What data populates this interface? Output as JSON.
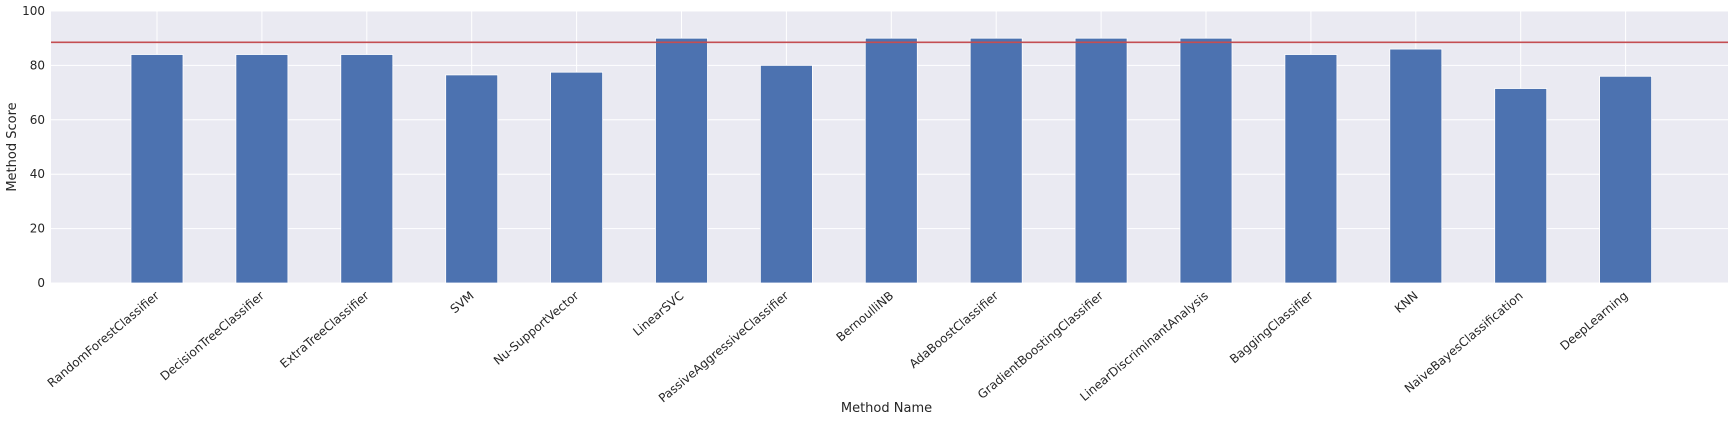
{
  "chart_data": {
    "type": "bar",
    "title": "",
    "xlabel": "Method Name",
    "ylabel": "Method Score",
    "ylim": [
      0,
      100
    ],
    "yticks": [
      0,
      20,
      40,
      60,
      80,
      100
    ],
    "grid": true,
    "categories": [
      "RandomForestClassifier",
      "DecisionTreeClassifier",
      "ExtraTreeClassifier",
      "SVM",
      "Nu-SupportVector",
      "LinearSVC",
      "PassiveAggressiveClassifier",
      "BernoulliNB",
      "AdaBoostClassifier",
      "GradientBoostingClassifier",
      "LinearDiscriminantAnalysis",
      "BaggingClassifier",
      "KNN",
      "NaiveBayesClassification",
      "DeepLearning"
    ],
    "values": [
      84,
      84,
      84,
      76.5,
      77.5,
      90,
      80,
      90,
      90,
      90,
      90,
      84,
      86,
      71.5,
      76
    ],
    "reference_line": {
      "y": 88.5,
      "color": "#c44e52"
    },
    "colors": {
      "bar": "#4c72b0",
      "plot_background": "#eaeaf2",
      "grid": "#ffffff",
      "text": "#262626"
    }
  }
}
